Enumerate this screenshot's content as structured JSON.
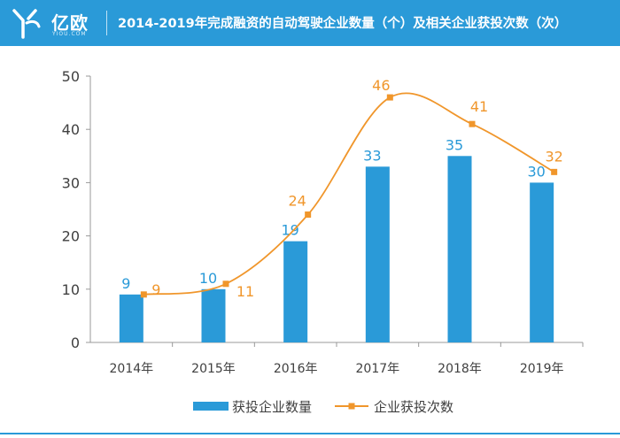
{
  "header": {
    "logo_text": "亿欧",
    "logo_sub": "YIOU.COM",
    "title": "2014-2019年完成融资的自动驾驶企业数量（个）及相关企业获投次数（次）"
  },
  "colors": {
    "header_bg": "#2a9ad8",
    "bar": "#2a9ad8",
    "line": "#f0962b",
    "axis": "#999999",
    "text": "#404040"
  },
  "chart_data": {
    "type": "bar",
    "categories": [
      "2014年",
      "2015年",
      "2016年",
      "2017年",
      "2018年",
      "2019年"
    ],
    "series": [
      {
        "name": "获投企业数量",
        "type": "bar",
        "values": [
          9,
          10,
          19,
          33,
          35,
          30
        ]
      },
      {
        "name": "企业获投次数",
        "type": "line",
        "smooth": true,
        "values": [
          9,
          11,
          24,
          46,
          41,
          32
        ]
      }
    ],
    "ylim": [
      0,
      50
    ],
    "yticks": [
      0,
      10,
      20,
      30,
      40,
      50
    ],
    "xlabel": "",
    "ylabel": "",
    "grid": false,
    "legend": "bottom"
  }
}
